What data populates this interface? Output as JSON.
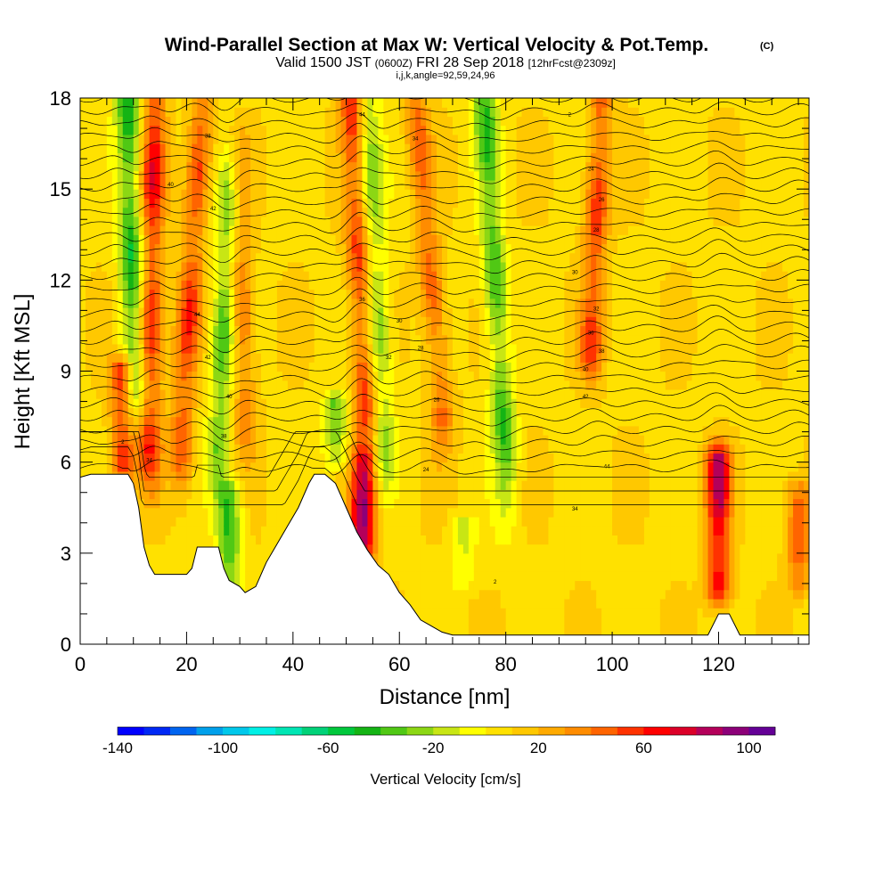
{
  "chart_data": {
    "type": "heatmap",
    "title": "Wind-Parallel Section at Max W: Vertical Velocity & Pot.Temp.",
    "title_mark": "(C)",
    "subtitle": {
      "valid_prefix": "Valid 1500 JST",
      "zulu": "(0600Z)",
      "date": "FRI 28 Sep 2018",
      "forecast": "[12hrFcst@2309z]"
    },
    "indices_line": "i,j,k,angle=92,59,24,96",
    "xlabel": "Distance [nm]",
    "ylabel": "Height [Kft MSL]",
    "xlim": [
      0,
      137
    ],
    "ylim": [
      0,
      18
    ],
    "x_ticks": [
      "0",
      "20",
      "40",
      "60",
      "80",
      "100",
      "120"
    ],
    "x_tick_values": [
      0,
      20,
      40,
      60,
      80,
      100,
      120
    ],
    "y_ticks": [
      "0",
      "3",
      "6",
      "9",
      "12",
      "15",
      "18"
    ],
    "y_tick_values": [
      0,
      3,
      6,
      9,
      12,
      15,
      18
    ],
    "colorbar": {
      "label": "Vertical Velocity [cm/s]",
      "min": -140,
      "max": 110,
      "step": 10,
      "tick_labels": [
        "-140",
        "-100",
        "-60",
        "-20",
        "20",
        "60",
        "100"
      ],
      "tick_values": [
        -140,
        -100,
        -60,
        -20,
        20,
        60,
        100
      ],
      "colors": [
        "#0000ff",
        "#0028f5",
        "#0064f0",
        "#00a0eb",
        "#00c8eb",
        "#00f0e6",
        "#00e6b4",
        "#00d278",
        "#00c83c",
        "#14b414",
        "#50c814",
        "#8cd714",
        "#c8e614",
        "#ffff00",
        "#ffe100",
        "#ffc800",
        "#ffaa00",
        "#ff8c00",
        "#ff6400",
        "#ff3200",
        "#ff0000",
        "#dc0028",
        "#b4005a",
        "#8c0078",
        "#640096"
      ]
    },
    "contour_labels": [
      "2",
      "34",
      "44",
      "42",
      "40",
      "38",
      "36",
      "32",
      "30",
      "28",
      "26",
      "24"
    ],
    "terrain_kft": [
      [
        0,
        5.5
      ],
      [
        2,
        5.6
      ],
      [
        9,
        5.6
      ],
      [
        10,
        5.3
      ],
      [
        11,
        4.5
      ],
      [
        12,
        3.2
      ],
      [
        13,
        2.6
      ],
      [
        14,
        2.3
      ],
      [
        16,
        2.3
      ],
      [
        18,
        2.3
      ],
      [
        20,
        2.3
      ],
      [
        21,
        2.5
      ],
      [
        22,
        3.2
      ],
      [
        24,
        3.2
      ],
      [
        26,
        3.2
      ],
      [
        27,
        2.5
      ],
      [
        28,
        2.1
      ],
      [
        30,
        1.9
      ],
      [
        31,
        1.7
      ],
      [
        33,
        1.9
      ],
      [
        35,
        2.7
      ],
      [
        37,
        3.3
      ],
      [
        39,
        3.9
      ],
      [
        41,
        4.5
      ],
      [
        43,
        5.3
      ],
      [
        44,
        5.6
      ],
      [
        46,
        5.6
      ],
      [
        48,
        5.3
      ],
      [
        50,
        4.5
      ],
      [
        52,
        3.7
      ],
      [
        54,
        3.1
      ],
      [
        56,
        2.6
      ],
      [
        58,
        2.3
      ],
      [
        60,
        1.7
      ],
      [
        62,
        1.3
      ],
      [
        64,
        0.8
      ],
      [
        66,
        0.6
      ],
      [
        68,
        0.4
      ],
      [
        70,
        0.3
      ],
      [
        80,
        0.3
      ],
      [
        90,
        0.3
      ],
      [
        100,
        0.3
      ],
      [
        116,
        0.3
      ],
      [
        118,
        0.3
      ],
      [
        120,
        1.0
      ],
      [
        122,
        1.0
      ],
      [
        124,
        0.3
      ],
      [
        137,
        0.3
      ]
    ],
    "updraft_columns": [
      {
        "x_bottom": 13,
        "x_top": 14,
        "z_bottom": 7,
        "z_top": 18,
        "peak": 60
      },
      {
        "x_bottom": 19,
        "x_top": 23,
        "z_bottom": 7,
        "z_top": 18,
        "peak": 50
      },
      {
        "x_bottom": 31,
        "x_top": 29,
        "z_bottom": 8,
        "z_top": 18,
        "peak": 40
      },
      {
        "x_bottom": 54,
        "x_top": 51,
        "z_bottom": 6,
        "z_top": 18,
        "peak": 50
      },
      {
        "x_bottom": 68,
        "x_top": 63,
        "z_bottom": 8,
        "z_top": 18,
        "peak": 40
      },
      {
        "x_bottom": 96,
        "x_top": 98,
        "z_bottom": 10,
        "z_top": 18,
        "peak": 50
      },
      {
        "x_bottom": 53,
        "x_top": 53,
        "z_bottom": 3,
        "z_top": 6,
        "peak": 70
      },
      {
        "x_bottom": 8,
        "x_top": 8,
        "z_bottom": 6,
        "z_top": 9,
        "peak": 70
      },
      {
        "x_bottom": 120,
        "x_top": 120,
        "z_bottom": 2,
        "z_top": 6,
        "peak": 80
      },
      {
        "x_bottom": 135,
        "x_top": 135,
        "z_bottom": 2,
        "z_top": 5,
        "peak": 40
      }
    ],
    "downdraft_columns": [
      {
        "x_bottom": 10,
        "x_top": 9,
        "z_bottom": 9,
        "z_top": 18,
        "peak": -60
      },
      {
        "x_bottom": 26,
        "x_top": 29,
        "z_bottom": 7,
        "z_top": 18,
        "peak": -50
      },
      {
        "x_bottom": 57,
        "x_top": 54,
        "z_bottom": 7,
        "z_top": 18,
        "peak": -40
      },
      {
        "x_bottom": 80,
        "x_top": 76,
        "z_bottom": 6,
        "z_top": 18,
        "peak": -50
      },
      {
        "x_bottom": 28,
        "x_top": 28,
        "z_bottom": 2,
        "z_top": 5,
        "peak": -50
      },
      {
        "x_bottom": 48,
        "x_top": 48,
        "z_bottom": 6,
        "z_top": 8,
        "peak": -40
      },
      {
        "x_bottom": 72,
        "x_top": 72,
        "z_bottom": 2,
        "z_top": 4,
        "peak": -20
      }
    ]
  }
}
